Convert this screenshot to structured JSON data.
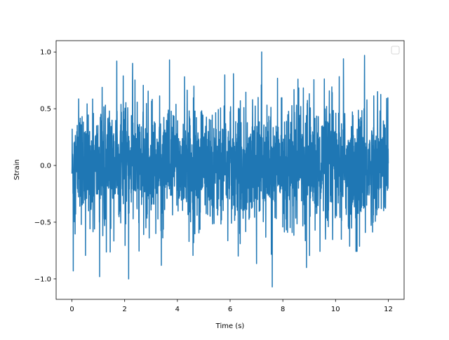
{
  "chart_data": {
    "type": "line",
    "title": "",
    "xlabel": "Time (s)",
    "ylabel": "Strain",
    "xlim": [
      -0.6,
      12.6
    ],
    "ylim": [
      -1.18,
      1.1
    ],
    "xticks": [
      0,
      2,
      4,
      6,
      8,
      10,
      12
    ],
    "xtick_labels": [
      "0",
      "2",
      "4",
      "6",
      "8",
      "10",
      "12"
    ],
    "yticks": [
      -1.0,
      -0.5,
      0.0,
      0.5,
      1.0
    ],
    "ytick_labels": [
      "−1.0",
      "−0.5",
      "0.0",
      "0.5",
      "1.0"
    ],
    "grid": false,
    "legend": {
      "placement": "top-right",
      "entries": []
    },
    "series": [
      {
        "color": "#1f77b4",
        "x_range": [
          0,
          12
        ],
        "description_of_values": "dense noisy strain signal, mostly between about -0.5 and 0.5",
        "peaks": [
          {
            "x": 0.05,
            "y": -0.93
          },
          {
            "x": 1.05,
            "y": -0.98
          },
          {
            "x": 1.7,
            "y": 0.92
          },
          {
            "x": 2.15,
            "y": -1.0
          },
          {
            "x": 2.3,
            "y": 0.9
          },
          {
            "x": 3.7,
            "y": 0.93
          },
          {
            "x": 7.2,
            "y": 1.0
          },
          {
            "x": 7.6,
            "y": -1.07
          },
          {
            "x": 8.9,
            "y": -0.9
          },
          {
            "x": 10.3,
            "y": 0.94
          },
          {
            "x": 11.1,
            "y": 0.97
          }
        ]
      }
    ]
  }
}
